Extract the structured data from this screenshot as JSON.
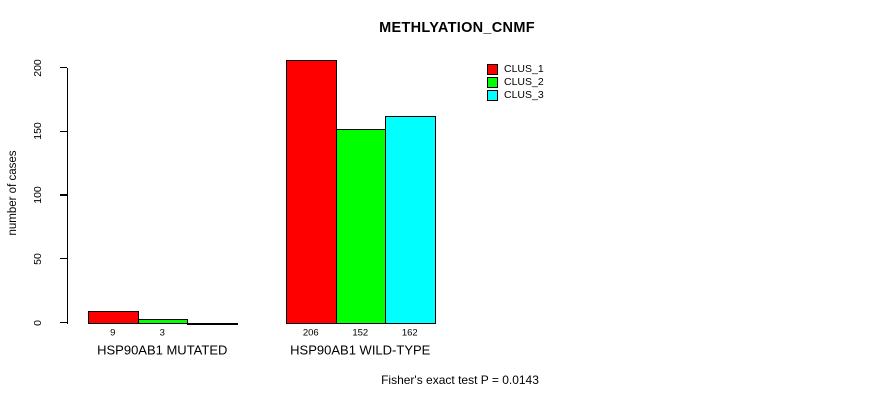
{
  "title": "METHLYATION_CNMF",
  "footer": "Fisher's exact test P = 0.0143",
  "chart_data": {
    "type": "bar",
    "title": "METHLYATION_CNMF",
    "xlabel": "",
    "ylabel": "number of cases",
    "ylim": [
      0,
      200
    ],
    "yticks": [
      0,
      50,
      100,
      150,
      200
    ],
    "grid": false,
    "legend_position": "top-right",
    "categories": [
      "HSP90AB1 MUTATED",
      "HSP90AB1 WILD-TYPE"
    ],
    "series": [
      {
        "name": "CLUS_1",
        "color": "#FF0000",
        "values": [
          9,
          206
        ]
      },
      {
        "name": "CLUS_2",
        "color": "#00FF00",
        "values": [
          3,
          152
        ]
      },
      {
        "name": "CLUS_3",
        "color": "#00FFFF",
        "values": [
          0,
          162
        ]
      }
    ],
    "value_labels": [
      [
        "9",
        "3",
        null
      ],
      [
        "206",
        "152",
        "162"
      ]
    ],
    "annotation": "Fisher's exact test P = 0.0143"
  }
}
